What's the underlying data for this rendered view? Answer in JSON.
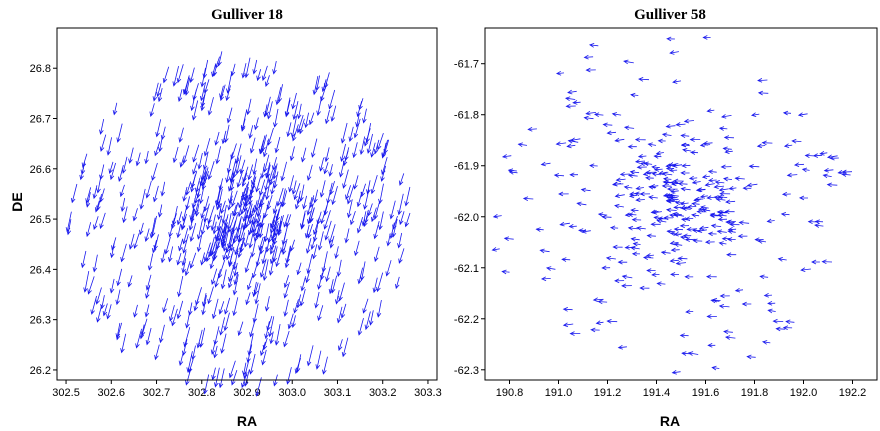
{
  "chart_data": [
    {
      "type": "scatter",
      "subtype": "vector-point-diagram",
      "title": "Gulliver 18",
      "xlabel": "RA",
      "ylabel": "DE",
      "xlim": [
        302.48,
        303.32
      ],
      "ylim": [
        26.18,
        26.88
      ],
      "xticks": [
        "302.5",
        "302.6",
        "302.7",
        "302.8",
        "302.9",
        "303.0",
        "303.1",
        "303.2",
        "303.3"
      ],
      "yticks": [
        "26.2",
        "26.3",
        "26.4",
        "26.5",
        "26.6",
        "26.7",
        "26.8"
      ],
      "color": "#1a1aee",
      "vector_direction": "down-left",
      "field": {
        "center": [
          302.89,
          26.51
        ],
        "radius_ra": 0.38,
        "radius_de": 0.33,
        "core_ra": 302.88,
        "core_de": 26.52
      },
      "approx_points": 620
    },
    {
      "type": "scatter",
      "subtype": "vector-point-diagram",
      "title": "Gulliver 58",
      "xlabel": "RA",
      "ylabel": "",
      "xlim": [
        190.7,
        192.3
      ],
      "ylim": [
        -62.32,
        -61.63
      ],
      "xticks": [
        "190.8",
        "191.0",
        "191.2",
        "191.4",
        "191.6",
        "191.8",
        "192.0",
        "192.2"
      ],
      "yticks": [
        "-61.7",
        "-61.8",
        "-61.9",
        "-62.0",
        "-62.1",
        "-62.2",
        "-62.3"
      ],
      "color": "#1a1aee",
      "vector_direction": "left",
      "field": {
        "center": [
          191.48,
          -61.97
        ],
        "radius_ra": 0.75,
        "radius_de": 0.34,
        "core_ra": 191.5,
        "core_de": -61.96
      },
      "approx_points": 330
    }
  ]
}
